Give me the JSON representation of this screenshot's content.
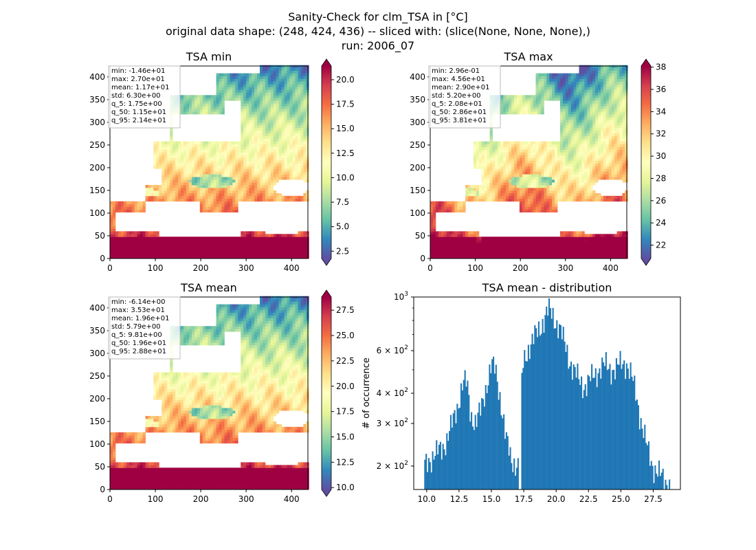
{
  "figure": {
    "title_lines": [
      "Sanity-Check for clm_TSA in [°C]",
      "original data shape: (248, 424, 436) -- sliced with: (slice(None, None, None),)",
      "run: 2006_07"
    ]
  },
  "chart_data": [
    {
      "type": "heatmap",
      "title": "TSA min",
      "xlabel": "",
      "ylabel": "",
      "xlim": [
        0,
        436
      ],
      "ylim": [
        0,
        424
      ],
      "xticks": [
        "0",
        "100",
        "200",
        "300",
        "400"
      ],
      "yticks": [
        "0",
        "50",
        "100",
        "150",
        "200",
        "250",
        "300",
        "350",
        "400"
      ],
      "colorbar": {
        "range": [
          1.75,
          21.4
        ],
        "ticks": [
          "2.5",
          "5.0",
          "7.5",
          "10.0",
          "12.5",
          "15.0",
          "17.5",
          "20.0"
        ],
        "cmap": "Spectral_r"
      },
      "stats": [
        "min: -1.46e+01",
        "max: 2.70e+01",
        "mean: 1.17e+01",
        "std: 6.30e+00",
        "q_5: 1.75e+00",
        "q_50: 1.15e+01",
        "q_95: 2.14e+01"
      ]
    },
    {
      "type": "heatmap",
      "title": "TSA max",
      "xlabel": "",
      "ylabel": "",
      "xlim": [
        0,
        436
      ],
      "ylim": [
        0,
        424
      ],
      "xticks": [
        "0",
        "100",
        "200",
        "300",
        "400"
      ],
      "yticks": [
        "0",
        "50",
        "100",
        "150",
        "200",
        "250",
        "300",
        "350",
        "400"
      ],
      "colorbar": {
        "range": [
          20.8,
          38.1
        ],
        "ticks": [
          "22",
          "24",
          "26",
          "28",
          "30",
          "32",
          "34",
          "36",
          "38"
        ],
        "cmap": "Spectral_r"
      },
      "stats": [
        "min: 2.96e-01",
        "max: 4.56e+01",
        "mean: 2.90e+01",
        "std: 5.20e+00",
        "q_5: 2.08e+01",
        "q_50: 2.86e+01",
        "q_95: 3.81e+01"
      ]
    },
    {
      "type": "heatmap",
      "title": "TSA mean",
      "xlabel": "",
      "ylabel": "",
      "xlim": [
        0,
        436
      ],
      "ylim": [
        0,
        424
      ],
      "xticks": [
        "0",
        "100",
        "200",
        "300",
        "400"
      ],
      "yticks": [
        "0",
        "50",
        "100",
        "150",
        "200",
        "250",
        "300",
        "350",
        "400"
      ],
      "colorbar": {
        "range": [
          9.81,
          28.8
        ],
        "ticks": [
          "10.0",
          "12.5",
          "15.0",
          "17.5",
          "20.0",
          "22.5",
          "25.0",
          "27.5"
        ],
        "cmap": "Spectral_r"
      },
      "stats": [
        "min: -6.14e+00",
        "max: 3.53e+01",
        "mean: 1.96e+01",
        "std: 5.79e+00",
        "q_5: 9.81e+00",
        "q_50: 1.96e+01",
        "q_95: 2.88e+01"
      ]
    },
    {
      "type": "bar",
      "title": "TSA mean - distribution",
      "xlabel": "",
      "ylabel": "# of occurrence",
      "yscale": "log",
      "xlim": [
        9.0,
        29.6
      ],
      "ylim": [
        160,
        1000
      ],
      "xticks": [
        "10.0",
        "12.5",
        "15.0",
        "17.5",
        "20.0",
        "22.5",
        "25.0",
        "27.5"
      ],
      "yticks": [
        {
          "value": 200,
          "base": "2 × 10",
          "exp": "2"
        },
        {
          "value": 300,
          "base": "3 × 10",
          "exp": "2"
        },
        {
          "value": 400,
          "base": "4 × 10",
          "exp": "2"
        },
        {
          "value": 600,
          "base": "6 × 10",
          "exp": "2"
        },
        {
          "value": 1000,
          "base": "10",
          "exp": "3"
        }
      ],
      "color": "#1f77b4",
      "bin_range": [
        9.81,
        28.8
      ],
      "bin_count": 190,
      "gap_at": 17.2,
      "envelope": [
        [
          9.8,
          200
        ],
        [
          10.2,
          215
        ],
        [
          10.8,
          225
        ],
        [
          11.2,
          240
        ],
        [
          11.6,
          260
        ],
        [
          12.0,
          300
        ],
        [
          12.4,
          360
        ],
        [
          12.8,
          440
        ],
        [
          13.1,
          440
        ],
        [
          13.4,
          330
        ],
        [
          13.8,
          300
        ],
        [
          14.2,
          340
        ],
        [
          14.6,
          430
        ],
        [
          15.0,
          520
        ],
        [
          15.3,
          500
        ],
        [
          15.7,
          380
        ],
        [
          16.1,
          260
        ],
        [
          16.5,
          215
        ],
        [
          16.9,
          205
        ],
        [
          17.2,
          195
        ],
        [
          17.4,
          520
        ],
        [
          17.8,
          610
        ],
        [
          18.2,
          660
        ],
        [
          18.6,
          720
        ],
        [
          19.0,
          800
        ],
        [
          19.4,
          880
        ],
        [
          19.8,
          830
        ],
        [
          20.2,
          760
        ],
        [
          20.6,
          650
        ],
        [
          21.0,
          560
        ],
        [
          21.4,
          490
        ],
        [
          21.8,
          450
        ],
        [
          22.2,
          430
        ],
        [
          22.6,
          450
        ],
        [
          23.0,
          480
        ],
        [
          23.4,
          510
        ],
        [
          23.8,
          520
        ],
        [
          24.2,
          510
        ],
        [
          24.6,
          500
        ],
        [
          25.0,
          530
        ],
        [
          25.4,
          540
        ],
        [
          25.8,
          470
        ],
        [
          26.2,
          390
        ],
        [
          26.6,
          300
        ],
        [
          27.0,
          240
        ],
        [
          27.4,
          205
        ],
        [
          27.8,
          190
        ],
        [
          28.2,
          178
        ],
        [
          28.8,
          168
        ]
      ]
    }
  ]
}
